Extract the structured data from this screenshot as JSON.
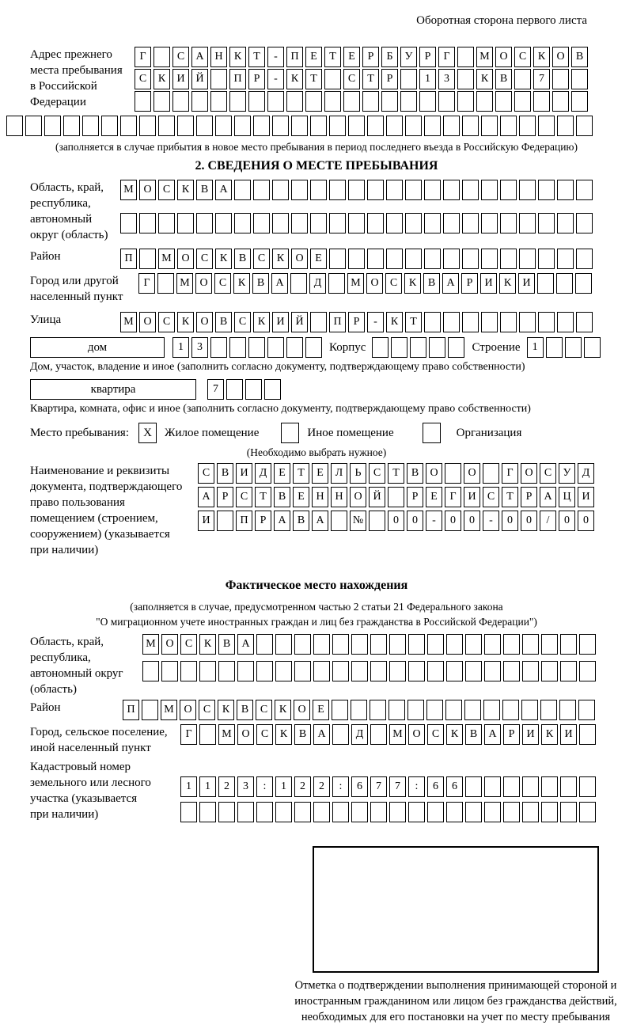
{
  "header": "Оборотная сторона первого листа",
  "prev_address": {
    "label": "Адрес прежнего\nместа пребывания\nв Российской\nФедерации",
    "rows": [
      {
        "count": 24,
        "text": "Г САНКТ-ПЕТЕРБУРГ МОСКОВ"
      },
      {
        "count": 24,
        "text": "СКИЙ ПР-КТ СТР 13 КВ 7"
      },
      {
        "count": 24,
        "text": ""
      },
      {
        "count": 31,
        "text": ""
      }
    ],
    "note": "(заполняется в случае прибытия в новое место пребывания в период последнего въезда в Российскую Федерацию)"
  },
  "section2": {
    "title": "2. СВЕДЕНИЯ О МЕСТЕ ПРЕБЫВАНИЯ",
    "oblast": {
      "label": "Область, край,\nреспублика,\nавтономный\nокруг (область)",
      "rows": [
        {
          "count": 25,
          "text": "МОСКВА"
        },
        {
          "count": 25,
          "text": ""
        }
      ]
    },
    "raion": {
      "label": "Район",
      "row": {
        "count": 25,
        "text": "П МОСКВСКОЕ"
      }
    },
    "gorod": {
      "label": "Город или другой\nнаселенный пункт",
      "row": {
        "count": 24,
        "text": "Г МОСКВА Д МОСКВАРИКИ"
      }
    },
    "ulitsa": {
      "label": "Улица",
      "row": {
        "count": 25,
        "text": "МОСКОВСКИЙ ПР-КТ"
      }
    },
    "house": {
      "box_label": "дом",
      "number": {
        "count": 8,
        "text": "13"
      },
      "korpus_label": "Корпус",
      "korpus": {
        "count": 5,
        "text": ""
      },
      "stroenie_label": "Строение",
      "stroenie": {
        "count": 4,
        "text": "1"
      }
    },
    "house_caption": "Дом, участок, владение и иное (заполнить согласно документу, подтверждающему право собственности)",
    "flat": {
      "box_label": "квартира",
      "number": {
        "count": 4,
        "text": "7"
      }
    },
    "flat_caption": "Квартира, комната, офис и иное (заполнить согласно документу, подтверждающему право собственности)",
    "stay_type": {
      "label": "Место пребывания:",
      "options": [
        {
          "label": "Жилое помещение",
          "mark": "X"
        },
        {
          "label": "Иное помещение",
          "mark": ""
        },
        {
          "label": "Организация",
          "mark": ""
        }
      ],
      "note": "(Необходимо выбрать нужное)"
    },
    "document": {
      "label": "Наименование и реквизиты\nдокумента, подтверждающего\nправо пользования\nпомещением (строением,\nсооружением) (указывается\nпри наличии)",
      "rows": [
        {
          "count": 21,
          "text": "СВИДЕТЕЛЬСТВО О ГОСУД"
        },
        {
          "count": 21,
          "text": "АРСТВЕННОЙ РЕГИСТРАЦИ"
        },
        {
          "count": 21,
          "text": "И ПРАВА № 00-00-00/000"
        }
      ]
    }
  },
  "actual_location": {
    "title": "Фактическое место нахождения",
    "note": "(заполняется в случае, предусмотренном частью 2 статьи 21 Федерального закона\n\"О миграционном учете иностранных граждан и лиц без гражданства в Российской Федерации\")",
    "oblast": {
      "label": "Область, край,\nреспублика,\nавтономный округ\n(область)",
      "rows": [
        {
          "count": 24,
          "text": "МОСКВА"
        },
        {
          "count": 24,
          "text": ""
        }
      ]
    },
    "raion": {
      "label": "Район",
      "row": {
        "count": 25,
        "text": "П МОСКВСКОЕ"
      }
    },
    "gorod": {
      "label": "Город, сельское поселение,\nиной населенный пункт",
      "row": {
        "count": 22,
        "text": "Г МОСКВА Д МОСКВАРИКИ"
      }
    },
    "kadastr": {
      "label": "Кадастровый номер\nземельного или лесного\nучастка (указывается\nпри наличии)",
      "rows": [
        {
          "count": 22,
          "text": "1123:122:677:66"
        },
        {
          "count": 22,
          "text": ""
        }
      ]
    },
    "stamp_caption": "Отметка о подтверждении выполнения принимающей стороной и иностранным гражданином или лицом без гражданства действий, необходимых для его постановки на учет по месту пребывания"
  }
}
